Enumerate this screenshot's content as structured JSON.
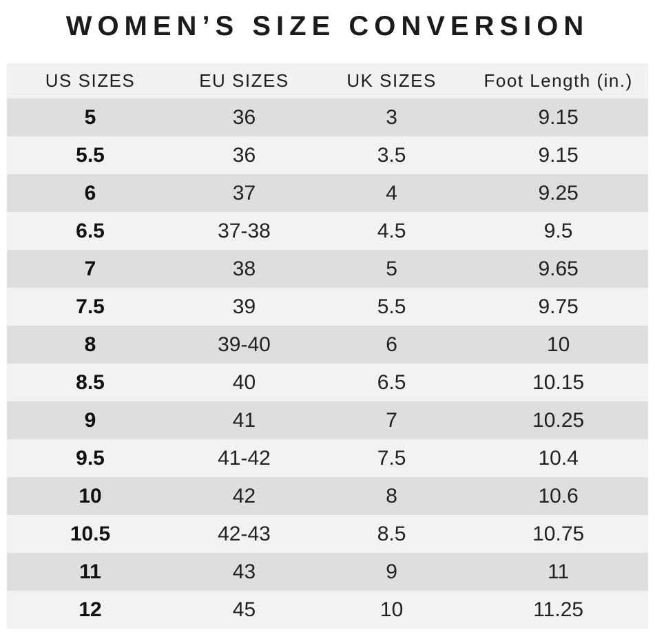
{
  "title": "WOMEN’S SIZE CONVERSION",
  "colors": {
    "row_dark": "#dddee0",
    "row_light": "#f2f2f3",
    "header_bg": "#f1f1f2",
    "text": "#1d1d1d"
  },
  "chart_data": {
    "type": "table",
    "title": "WOMEN’S SIZE CONVERSION",
    "columns": [
      "US SIZES",
      "EU SIZES",
      "UK SIZES",
      "Foot Length (in.)"
    ],
    "rows": [
      [
        "5",
        "36",
        "3",
        "9.15"
      ],
      [
        "5.5",
        "36",
        "3.5",
        "9.15"
      ],
      [
        "6",
        "37",
        "4",
        "9.25"
      ],
      [
        "6.5",
        "37-38",
        "4.5",
        "9.5"
      ],
      [
        "7",
        "38",
        "5",
        "9.65"
      ],
      [
        "7.5",
        "39",
        "5.5",
        "9.75"
      ],
      [
        "8",
        "39-40",
        "6",
        "10"
      ],
      [
        "8.5",
        "40",
        "6.5",
        "10.15"
      ],
      [
        "9",
        "41",
        "7",
        "10.25"
      ],
      [
        "9.5",
        "41-42",
        "7.5",
        "10.4"
      ],
      [
        "10",
        "42",
        "8",
        "10.6"
      ],
      [
        "10.5",
        "42-43",
        "8.5",
        "10.75"
      ],
      [
        "11",
        "43",
        "9",
        "11"
      ],
      [
        "12",
        "45",
        "10",
        "11.25"
      ]
    ],
    "layout_hints": {
      "first_column_bold": true,
      "striped": true,
      "first_data_row_shade": "dark"
    }
  }
}
